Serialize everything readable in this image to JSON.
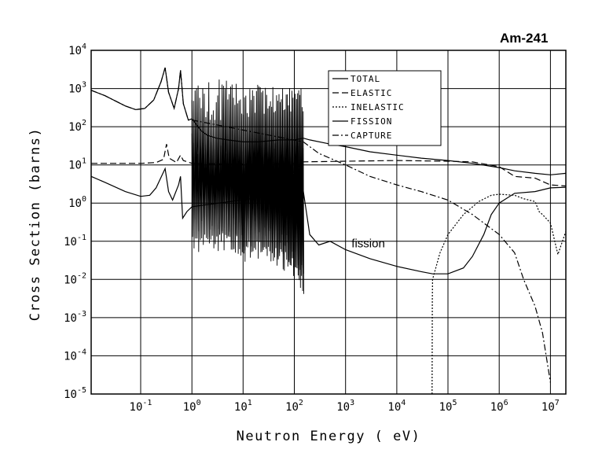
{
  "chart_data": {
    "type": "line",
    "title": "Am-241",
    "xlabel": "Neutron Energy ( eV)",
    "ylabel": "Cross Section (barns)",
    "x_scale": "log",
    "y_scale": "log",
    "xlim": [
      0.0108,
      20000000
    ],
    "ylim": [
      1e-05,
      10000
    ],
    "grid": true,
    "x_ticks": [
      {
        "value": 0.1,
        "base": "10",
        "exp": "-1"
      },
      {
        "value": 1,
        "base": "10",
        "exp": "0"
      },
      {
        "value": 10,
        "base": "10",
        "exp": "1"
      },
      {
        "value": 100,
        "base": "10",
        "exp": "2"
      },
      {
        "value": 1000,
        "base": "10",
        "exp": "3"
      },
      {
        "value": 10000,
        "base": "10",
        "exp": "4"
      },
      {
        "value": 100000,
        "base": "10",
        "exp": "5"
      },
      {
        "value": 1000000,
        "base": "10",
        "exp": "6"
      },
      {
        "value": 10000000,
        "base": "10",
        "exp": "7"
      }
    ],
    "y_ticks": [
      {
        "value": 10000,
        "base": "10",
        "exp": "4"
      },
      {
        "value": 1000,
        "base": "10",
        "exp": "3"
      },
      {
        "value": 100,
        "base": "10",
        "exp": "2"
      },
      {
        "value": 10,
        "base": "10",
        "exp": "1"
      },
      {
        "value": 1,
        "base": "10",
        "exp": "0"
      },
      {
        "value": 0.1,
        "base": "10",
        "exp": "-1"
      },
      {
        "value": 0.01,
        "base": "10",
        "exp": "-2"
      },
      {
        "value": 0.001,
        "base": "10",
        "exp": "-3"
      },
      {
        "value": 0.0001,
        "base": "10",
        "exp": "-4"
      },
      {
        "value": 1e-05,
        "base": "10",
        "exp": "-5"
      }
    ],
    "legend_position": "top-right",
    "resonance_region": {
      "from": 1.0,
      "to": 150
    },
    "series": [
      {
        "name": "TOTAL",
        "dash": "solid",
        "points": [
          [
            0.0108,
            900
          ],
          [
            0.02,
            650
          ],
          [
            0.05,
            350
          ],
          [
            0.08,
            280
          ],
          [
            0.12,
            300
          ],
          [
            0.18,
            500
          ],
          [
            0.25,
            1500
          ],
          [
            0.3,
            3500
          ],
          [
            0.35,
            800
          ],
          [
            0.45,
            300
          ],
          [
            0.55,
            1000
          ],
          [
            0.6,
            3000
          ],
          [
            0.68,
            400
          ],
          [
            0.85,
            150
          ],
          [
            1.0,
            160
          ],
          [
            1.5,
            80
          ],
          [
            2,
            60
          ],
          [
            3,
            50
          ],
          [
            5,
            45
          ],
          [
            10,
            40
          ],
          [
            20,
            40
          ],
          [
            50,
            45
          ],
          [
            100,
            45
          ],
          [
            150,
            50
          ],
          [
            200,
            45
          ],
          [
            500,
            35
          ],
          [
            1000,
            30
          ],
          [
            3000,
            22
          ],
          [
            10000,
            18
          ],
          [
            30000,
            15
          ],
          [
            100000,
            13
          ],
          [
            300000,
            11
          ],
          [
            1000000,
            8.5
          ],
          [
            2000000,
            7
          ],
          [
            5000000,
            6
          ],
          [
            10000000,
            5.5
          ],
          [
            20000000,
            6
          ]
        ]
      },
      {
        "name": "ELASTIC",
        "dash": "dashed",
        "points": [
          [
            0.0108,
            11
          ],
          [
            0.05,
            11
          ],
          [
            0.1,
            11
          ],
          [
            0.2,
            11.5
          ],
          [
            0.28,
            14
          ],
          [
            0.32,
            35
          ],
          [
            0.36,
            15
          ],
          [
            0.5,
            11.5
          ],
          [
            0.6,
            18
          ],
          [
            0.68,
            13
          ],
          [
            1,
            11
          ],
          [
            5,
            10.5
          ],
          [
            20,
            10.5
          ],
          [
            100,
            11
          ],
          [
            150,
            12
          ],
          [
            1000,
            12.5
          ],
          [
            10000,
            13
          ],
          [
            100000,
            12.5
          ],
          [
            300000,
            12
          ],
          [
            1000000,
            9
          ],
          [
            2000000,
            5
          ],
          [
            5000000,
            4.5
          ],
          [
            10000000,
            3
          ],
          [
            20000000,
            2.8
          ]
        ]
      },
      {
        "name": "INELASTIC",
        "dash": "dotted",
        "points": [
          [
            49000,
            1e-05
          ],
          [
            49500,
            0.003
          ],
          [
            50000,
            0.01
          ],
          [
            70000,
            0.05
          ],
          [
            100000,
            0.15
          ],
          [
            200000,
            0.5
          ],
          [
            400000,
            1.1
          ],
          [
            700000,
            1.6
          ],
          [
            1000000,
            1.7
          ],
          [
            2000000,
            1.6
          ],
          [
            3000000,
            1.3
          ],
          [
            5000000,
            1.1
          ],
          [
            6000000,
            0.6
          ],
          [
            7000000,
            0.5
          ],
          [
            10000000,
            0.3
          ],
          [
            14000000,
            0.045
          ],
          [
            18000000,
            0.12
          ],
          [
            20000000,
            0.18
          ]
        ]
      },
      {
        "name": "FISSION",
        "dash": "solid",
        "points": [
          [
            0.0108,
            5
          ],
          [
            0.02,
            3.5
          ],
          [
            0.05,
            2
          ],
          [
            0.1,
            1.5
          ],
          [
            0.15,
            1.6
          ],
          [
            0.2,
            2.5
          ],
          [
            0.3,
            8
          ],
          [
            0.35,
            2
          ],
          [
            0.42,
            1.2
          ],
          [
            0.55,
            3
          ],
          [
            0.6,
            5
          ],
          [
            0.66,
            0.4
          ],
          [
            0.8,
            0.6
          ],
          [
            1,
            0.8
          ],
          [
            150,
            2
          ],
          [
            200,
            0.15
          ],
          [
            300,
            0.08
          ],
          [
            500,
            0.1
          ],
          [
            1000,
            0.06
          ],
          [
            3000,
            0.035
          ],
          [
            10000,
            0.022
          ],
          [
            30000,
            0.016
          ],
          [
            50000,
            0.014
          ],
          [
            100000,
            0.014
          ],
          [
            200000,
            0.02
          ],
          [
            300000,
            0.04
          ],
          [
            500000,
            0.15
          ],
          [
            700000,
            0.5
          ],
          [
            1000000,
            1.0
          ],
          [
            2000000,
            1.8
          ],
          [
            5000000,
            2.0
          ],
          [
            10000000,
            2.5
          ],
          [
            20000000,
            2.6
          ]
        ]
      },
      {
        "name": "CAPTURE",
        "dash": "dashdot",
        "points": [
          [
            0.0108,
            900
          ],
          [
            0.02,
            650
          ],
          [
            0.05,
            350
          ],
          [
            0.08,
            280
          ],
          [
            0.12,
            300
          ],
          [
            0.18,
            500
          ],
          [
            0.25,
            1500
          ],
          [
            0.3,
            3500
          ],
          [
            0.35,
            800
          ],
          [
            0.45,
            300
          ],
          [
            0.55,
            1000
          ],
          [
            0.6,
            3000
          ],
          [
            0.68,
            400
          ],
          [
            0.85,
            150
          ],
          [
            1.0,
            150
          ],
          [
            150,
            40
          ],
          [
            300,
            20
          ],
          [
            1000,
            10
          ],
          [
            3000,
            5
          ],
          [
            10000,
            3
          ],
          [
            30000,
            2
          ],
          [
            100000,
            1.2
          ],
          [
            300000,
            0.5
          ],
          [
            1000000,
            0.15
          ],
          [
            2000000,
            0.05
          ],
          [
            3000000,
            0.01
          ],
          [
            5000000,
            0.002
          ],
          [
            7000000,
            0.0004
          ],
          [
            10000000,
            2e-05
          ]
        ]
      }
    ],
    "annotations": [
      {
        "text": "fission",
        "x": 2000,
        "y": 0.07
      }
    ]
  }
}
